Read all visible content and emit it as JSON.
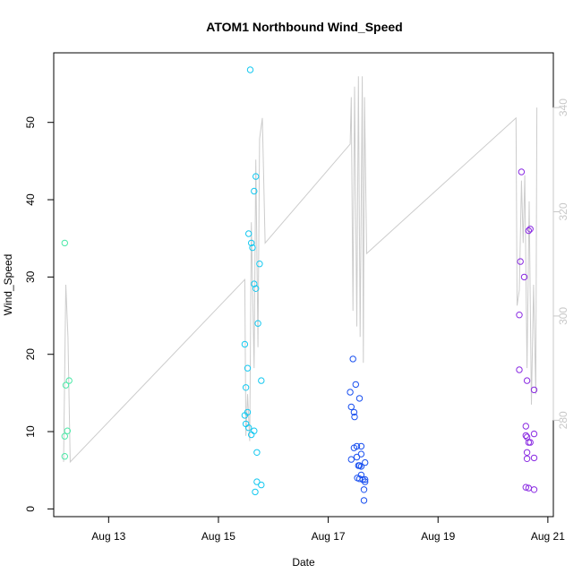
{
  "chart_data": {
    "type": "scatter",
    "title": "ATOM1 Northbound Wind_Speed",
    "xlabel": "Date",
    "ylabel": "Wind_Speed",
    "x_ticks": [
      {
        "day": 13,
        "label": "Aug 13"
      },
      {
        "day": 15,
        "label": "Aug 15"
      },
      {
        "day": 17,
        "label": "Aug 17"
      },
      {
        "day": 19,
        "label": "Aug 19"
      },
      {
        "day": 21,
        "label": "Aug 21"
      }
    ],
    "xlim": [
      12.0,
      21.1
    ],
    "ylim": [
      -1.0,
      59.0
    ],
    "y_ticks": [
      0,
      10,
      20,
      30,
      40,
      50
    ],
    "y2_ticks": [
      280,
      300,
      320,
      340
    ],
    "y2lim": [
      261.5,
      350.5
    ],
    "y2_color": "#c8c8c8",
    "grid": false,
    "series": [
      {
        "color": "#4de8a8",
        "points": [
          [
            12.2,
            34.4
          ],
          [
            12.22,
            16.0
          ],
          [
            12.28,
            16.6
          ],
          [
            12.2,
            9.4
          ],
          [
            12.25,
            10.1
          ],
          [
            12.2,
            6.8
          ]
        ]
      },
      {
        "color": "#14c8f0",
        "points": [
          [
            15.58,
            56.8
          ],
          [
            15.68,
            43.0
          ],
          [
            15.65,
            41.1
          ],
          [
            15.55,
            35.6
          ],
          [
            15.6,
            34.4
          ],
          [
            15.62,
            33.8
          ],
          [
            15.75,
            31.7
          ],
          [
            15.65,
            29.1
          ],
          [
            15.68,
            28.5
          ],
          [
            15.72,
            24.0
          ],
          [
            15.48,
            21.3
          ],
          [
            15.53,
            18.2
          ],
          [
            15.78,
            16.6
          ],
          [
            15.5,
            15.7
          ],
          [
            15.53,
            12.5
          ],
          [
            15.48,
            12.1
          ],
          [
            15.5,
            11.0
          ],
          [
            15.55,
            10.5
          ],
          [
            15.65,
            10.1
          ],
          [
            15.6,
            9.6
          ],
          [
            15.7,
            7.3
          ],
          [
            15.7,
            3.5
          ],
          [
            15.78,
            3.1
          ],
          [
            15.67,
            2.2
          ]
        ]
      },
      {
        "color": "#1a50f0",
        "points": [
          [
            17.45,
            19.4
          ],
          [
            17.5,
            16.1
          ],
          [
            17.4,
            15.1
          ],
          [
            17.57,
            14.3
          ],
          [
            17.42,
            13.2
          ],
          [
            17.47,
            12.5
          ],
          [
            17.48,
            11.9
          ],
          [
            17.52,
            8.1
          ],
          [
            17.47,
            7.9
          ],
          [
            17.6,
            8.1
          ],
          [
            17.6,
            7.1
          ],
          [
            17.52,
            6.7
          ],
          [
            17.42,
            6.4
          ],
          [
            17.67,
            6.0
          ],
          [
            17.55,
            5.6
          ],
          [
            17.57,
            5.6
          ],
          [
            17.6,
            5.5
          ],
          [
            17.53,
            4.0
          ],
          [
            17.57,
            3.9
          ],
          [
            17.63,
            3.8
          ],
          [
            17.6,
            4.4
          ],
          [
            17.67,
            3.8
          ],
          [
            17.67,
            3.5
          ],
          [
            17.65,
            2.5
          ],
          [
            17.65,
            1.1
          ]
        ]
      },
      {
        "color": "#8a2be2",
        "points": [
          [
            20.52,
            43.6
          ],
          [
            20.68,
            36.2
          ],
          [
            20.65,
            36.0
          ],
          [
            20.5,
            32.0
          ],
          [
            20.57,
            30.0
          ],
          [
            20.48,
            25.1
          ],
          [
            20.75,
            15.4
          ],
          [
            20.48,
            18.0
          ],
          [
            20.62,
            16.6
          ],
          [
            20.6,
            10.7
          ],
          [
            20.6,
            9.5
          ],
          [
            20.62,
            9.3
          ],
          [
            20.65,
            8.6
          ],
          [
            20.68,
            8.6
          ],
          [
            20.62,
            7.3
          ],
          [
            20.75,
            9.7
          ],
          [
            20.62,
            6.5
          ],
          [
            20.75,
            6.6
          ],
          [
            20.6,
            2.8
          ],
          [
            20.65,
            2.7
          ],
          [
            20.75,
            2.5
          ]
        ]
      }
    ],
    "line_series": {
      "axis": "right",
      "color": "#cccccc",
      "points": [
        [
          12.18,
          272
        ],
        [
          12.22,
          306
        ],
        [
          12.26,
          296
        ],
        [
          12.3,
          272
        ],
        [
          15.48,
          307
        ],
        [
          15.5,
          277
        ],
        [
          15.53,
          285
        ],
        [
          15.57,
          276
        ],
        [
          15.6,
          318
        ],
        [
          15.65,
          290
        ],
        [
          15.68,
          330
        ],
        [
          15.72,
          294
        ],
        [
          15.75,
          334
        ],
        [
          15.8,
          338
        ],
        [
          15.85,
          314
        ],
        [
          17.4,
          333
        ],
        [
          17.42,
          342
        ],
        [
          17.45,
          301
        ],
        [
          17.48,
          344
        ],
        [
          17.52,
          298
        ],
        [
          17.55,
          346
        ],
        [
          17.58,
          296
        ],
        [
          17.62,
          346
        ],
        [
          17.64,
          291
        ],
        [
          17.66,
          342
        ],
        [
          17.7,
          312
        ],
        [
          20.42,
          338
        ],
        [
          20.44,
          302
        ],
        [
          20.48,
          305
        ],
        [
          20.52,
          326
        ],
        [
          20.55,
          314
        ],
        [
          20.58,
          327
        ],
        [
          20.62,
          290
        ],
        [
          20.66,
          322
        ],
        [
          20.7,
          283
        ],
        [
          20.74,
          306
        ],
        [
          20.78,
          285
        ],
        [
          20.8,
          340
        ]
      ]
    }
  }
}
